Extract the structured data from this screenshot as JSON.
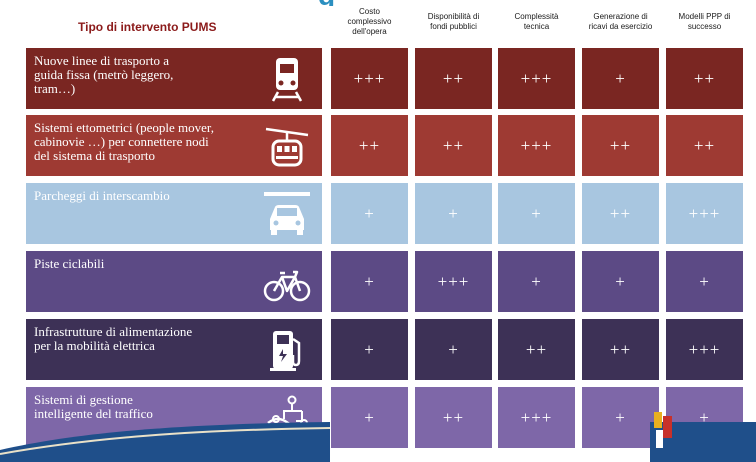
{
  "title_fragment": "g",
  "header": {
    "left_title": "Tipo di intervento PUMS",
    "columns": [
      "Costo\ncomplessivo\ndell'opera",
      "Disponibilità di\nfondi pubblici",
      "Complessità\ntecnica",
      "Generazione di\nricavi da esercizio",
      "Modelli PPP di\nsuccesso"
    ]
  },
  "rows": [
    {
      "label": "Nuove linee di trasporto a\nguida fissa  (metrò leggero,\ntram…)",
      "icon": "tram-icon",
      "values": [
        "+++",
        "++",
        "+++",
        "+",
        "++"
      ],
      "label_color": "#7a2622",
      "cell_color": "#7a2622"
    },
    {
      "label": "Sistemi ettometrici (people mover,\ncabinovie …) per connettere nodi\ndel sistema di trasporto",
      "icon": "cable-car-icon",
      "values": [
        "++",
        "++",
        "+++",
        "++",
        "++"
      ],
      "label_color": "#9e3a33",
      "cell_color": "#9e3a33"
    },
    {
      "label": "Parcheggi di interscambio",
      "icon": "parking-car-icon",
      "values": [
        "+",
        "+",
        "+",
        "++",
        "+++"
      ],
      "label_color": "#a8c6e0",
      "cell_color": "#a8c6e0"
    },
    {
      "label": "Piste ciclabili",
      "icon": "bicycle-icon",
      "values": [
        "+",
        "+++",
        "+",
        "+",
        "+"
      ],
      "label_color": "#5c4a85",
      "cell_color": "#5c4a85"
    },
    {
      "label": "Infrastrutture di alimentazione\nper la mobilità elettrica",
      "icon": "ev-charger-icon",
      "values": [
        "+",
        "+",
        "++",
        "++",
        "+++"
      ],
      "label_color": "#3d3156",
      "cell_color": "#3d3156"
    },
    {
      "label": "Sistemi di gestione\nintelligente del traffico",
      "icon": "traffic-management-icon",
      "values": [
        "+",
        "++",
        "+++",
        "+",
        "+"
      ],
      "label_color": "#7e67a8",
      "cell_color": "#7e67a8"
    }
  ],
  "colors": {
    "header_title": "#8b1a1a",
    "slide_title": "#2b8fc0",
    "bottom_band": "#1f4f8a"
  }
}
